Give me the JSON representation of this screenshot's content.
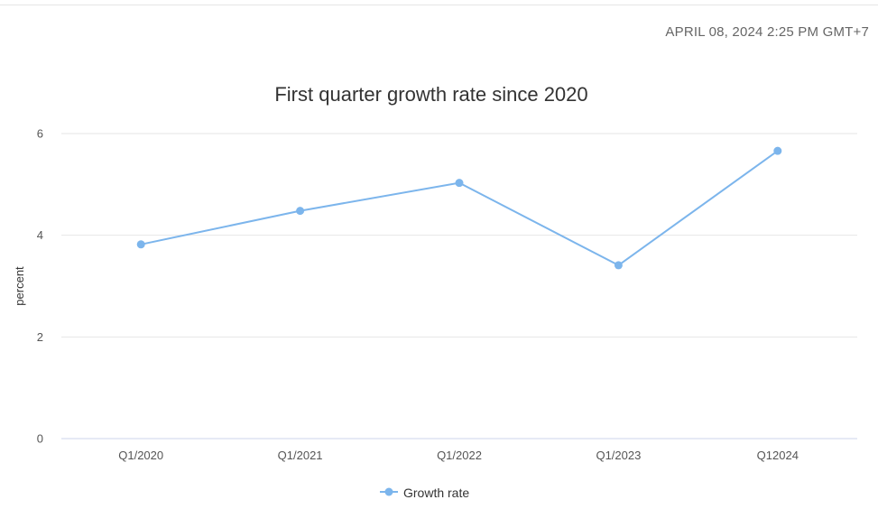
{
  "header": {
    "timestamp": "APRIL 08, 2024 2:25 PM GMT+7"
  },
  "colors": {
    "series": "#7cb5ec",
    "grid": "#e6e6e6",
    "axis_line": "#ccd6eb"
  },
  "legend": {
    "icon": "line-marker-icon"
  },
  "chart_data": {
    "type": "line",
    "title": "First quarter growth rate since 2020",
    "xlabel": "",
    "ylabel": "percent",
    "categories": [
      "Q1/2020",
      "Q1/2021",
      "Q1/2022",
      "Q1/2023",
      "Q12024"
    ],
    "series": [
      {
        "name": "Growth rate",
        "values": [
          3.82,
          4.48,
          5.03,
          3.41,
          5.66
        ]
      }
    ],
    "ylim": [
      0,
      6
    ],
    "yticks": [
      "0",
      "2",
      "4",
      "6"
    ],
    "grid": true,
    "legend_position": "bottom-center"
  }
}
